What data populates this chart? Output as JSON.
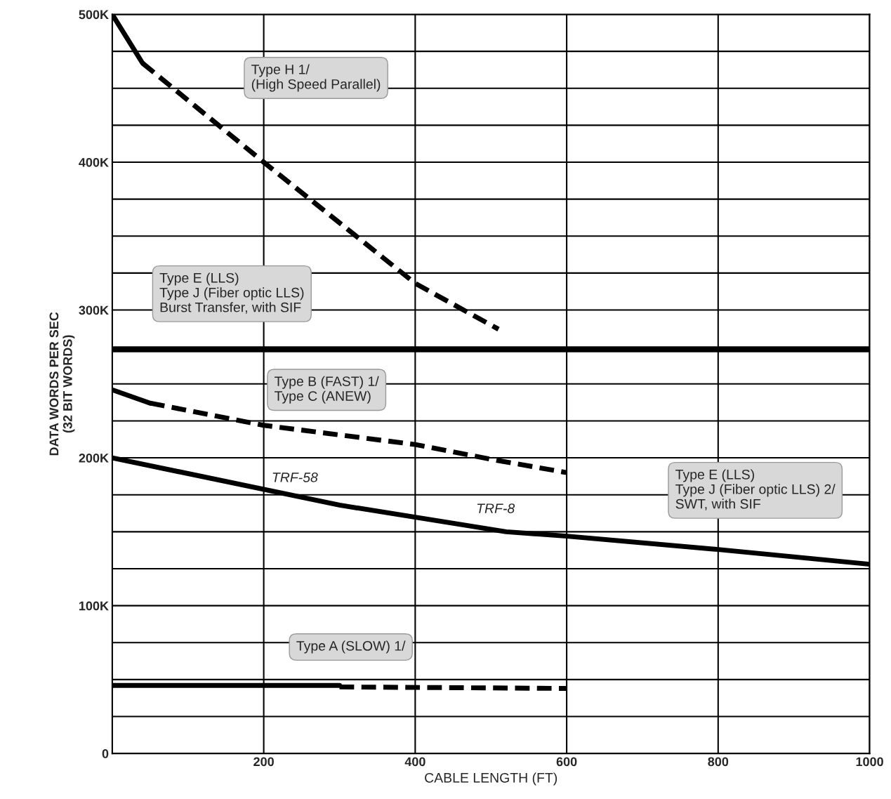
{
  "chart_data": {
    "type": "line",
    "xlabel": "CABLE LENGTH (FT)",
    "ylabel": "DATA WORDS PER SEC\n(32 BIT WORDS)",
    "series": [
      {
        "color": "#000000",
        "line_style": "solid",
        "x": [
          0,
          40
        ],
        "values": [
          500000,
          467000
        ]
      },
      {
        "color": "#000000",
        "line_style": "dashed",
        "x": [
          40,
          200,
          400,
          510
        ],
        "values": [
          467000,
          400000,
          318000,
          287000
        ]
      },
      {
        "color": "#000000",
        "line_style": "solid",
        "x": [
          0,
          1000
        ],
        "values": [
          273000,
          273000
        ]
      },
      {
        "color": "#000000",
        "line_style": "solid",
        "x": [
          0,
          50
        ],
        "values": [
          246000,
          237000
        ]
      },
      {
        "color": "#000000",
        "line_style": "dashed",
        "x": [
          50,
          200,
          400,
          500,
          600
        ],
        "values": [
          237000,
          222000,
          209000,
          199000,
          190000
        ]
      },
      {
        "color": "#000000",
        "line_style": "solid",
        "x": [
          0,
          300,
          520,
          600,
          800,
          1000
        ],
        "values": [
          200000,
          168000,
          150000,
          147000,
          138000,
          128000
        ]
      },
      {
        "color": "#000000",
        "line_style": "solid",
        "x": [
          0,
          300
        ],
        "values": [
          46000,
          46000
        ]
      },
      {
        "color": "#000000",
        "line_style": "dashed",
        "x": [
          300,
          600
        ],
        "values": [
          45000,
          44000
        ]
      }
    ],
    "xlim": [
      0,
      1000
    ],
    "xticks": [
      200,
      400,
      600,
      800,
      1000
    ],
    "ylim": [
      0,
      500000
    ],
    "yticks": [
      {
        "value": 0,
        "label": "0"
      },
      {
        "value": 25000,
        "label": null
      },
      {
        "value": 50000,
        "label": null
      },
      {
        "value": 75000,
        "label": null
      },
      {
        "value": 100000,
        "label": "100K"
      },
      {
        "value": 125000,
        "label": null
      },
      {
        "value": 150000,
        "label": null
      },
      {
        "value": 175000,
        "label": null
      },
      {
        "value": 200000,
        "label": "200K"
      },
      {
        "value": 225000,
        "label": null
      },
      {
        "value": 250000,
        "label": null
      },
      {
        "value": 275000,
        "label": null
      },
      {
        "value": 300000,
        "label": "300K"
      },
      {
        "value": 325000,
        "label": null
      },
      {
        "value": 350000,
        "label": null
      },
      {
        "value": 375000,
        "label": null
      },
      {
        "value": 400000,
        "label": "400K"
      },
      {
        "value": 425000,
        "label": null
      },
      {
        "value": 450000,
        "label": null
      },
      {
        "value": 475000,
        "label": null
      },
      {
        "value": 500000,
        "label": "500K"
      }
    ],
    "grid": true,
    "legend": false,
    "marker": "none",
    "annotations": [
      "Type H 1/\n(High Speed Parallel)",
      "Type E (LLS)\nType J (Fiber optic LLS)\nBurst Transfer, with SIF",
      "Type B (FAST) 1/\nType C (ANEW)",
      "TRF-58",
      "TRF-8",
      "Type E (LLS)\nType J (Fiber optic LLS) 2/\nSWT, with SIF",
      "Type A (SLOW) 1/"
    ]
  }
}
